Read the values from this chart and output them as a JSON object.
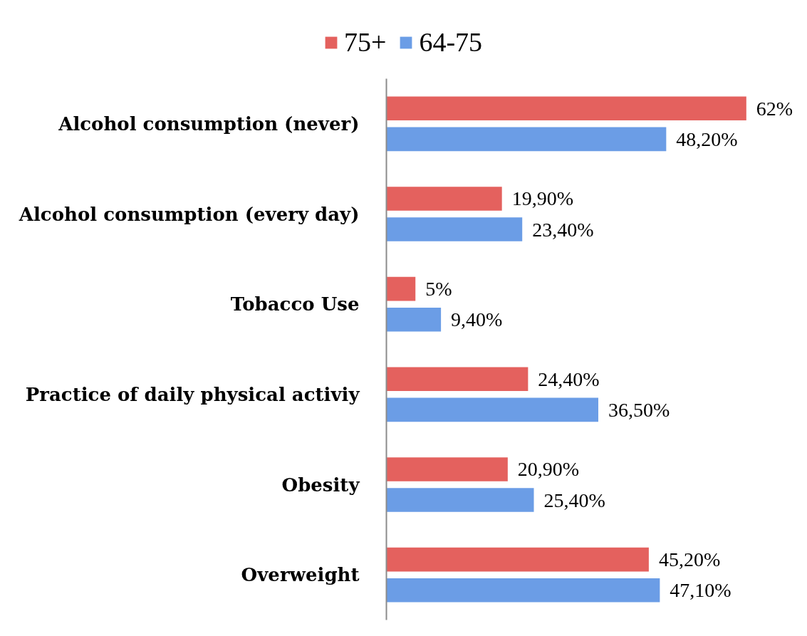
{
  "chart_data": {
    "type": "bar",
    "orientation": "horizontal",
    "categories": [
      "Alcohol consumption (never)",
      "Alcohol consumption (every day)",
      "Tobacco Use",
      "Practice of daily physical activiy",
      "Obesity",
      "Overweight"
    ],
    "series": [
      {
        "name": "75+",
        "color": "#e4615e",
        "values": [
          62,
          19.9,
          5,
          24.4,
          20.9,
          45.2
        ],
        "value_labels": [
          "62%",
          "19,90%",
          "5%",
          "24,40%",
          "20,90%",
          "45,20%"
        ]
      },
      {
        "name": "64-75",
        "color": "#6b9de6",
        "values": [
          48.2,
          23.4,
          9.4,
          36.5,
          25.4,
          47.1
        ],
        "value_labels": [
          "48,20%",
          "23,40%",
          "9,40%",
          "36,50%",
          "25,40%",
          "47,10%"
        ]
      }
    ],
    "tick_labels": "y",
    "legend": "top"
  }
}
